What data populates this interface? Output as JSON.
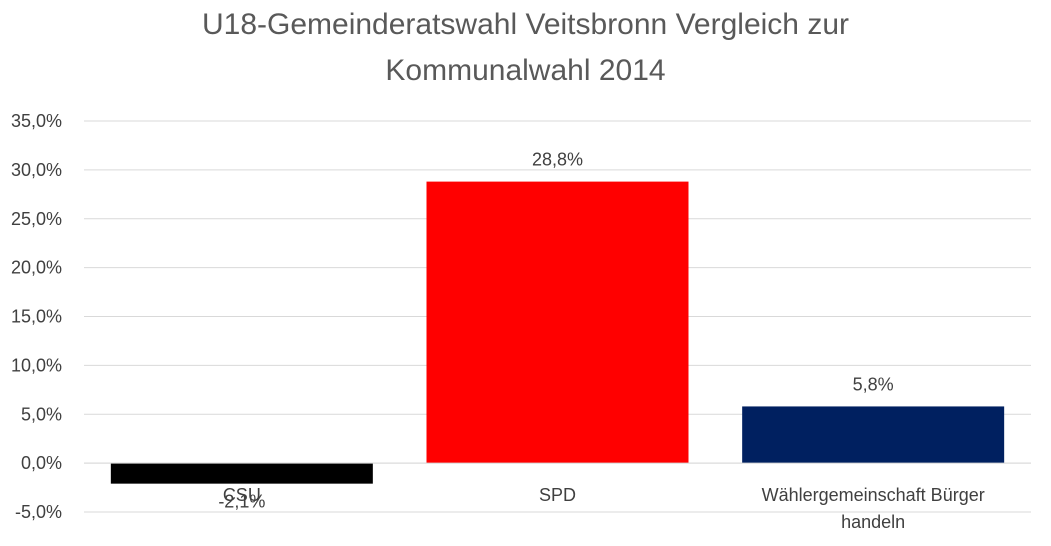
{
  "chart_data": {
    "type": "bar",
    "title_lines": [
      "U18-Gemeinderatswahl Veitsbronn Vergleich zur",
      "Kommunalwahl 2014"
    ],
    "categories": [
      [
        "CSU"
      ],
      [
        "SPD"
      ],
      [
        "Wählergemeinschaft Bürger",
        "handeln"
      ]
    ],
    "values": [
      -2.1,
      28.8,
      5.8
    ],
    "data_labels": [
      "-2,1%",
      "28,8%",
      "5,8%"
    ],
    "colors": [
      "#000000",
      "#ff0000",
      "#002060"
    ],
    "y_ticks": [
      {
        "value": 35,
        "label": "35,0%"
      },
      {
        "value": 30,
        "label": "30,0%"
      },
      {
        "value": 25,
        "label": "25,0%"
      },
      {
        "value": 20,
        "label": "20,0%"
      },
      {
        "value": 15,
        "label": "15,0%"
      },
      {
        "value": 10,
        "label": "10,0%"
      },
      {
        "value": 5,
        "label": "5,0%"
      },
      {
        "value": 0,
        "label": "0,0%"
      },
      {
        "value": -5,
        "label": "-5,0%"
      }
    ],
    "ylim": [
      -5,
      35
    ],
    "grid": true,
    "gridline_color": "#d9d9d9",
    "legend": "none"
  }
}
